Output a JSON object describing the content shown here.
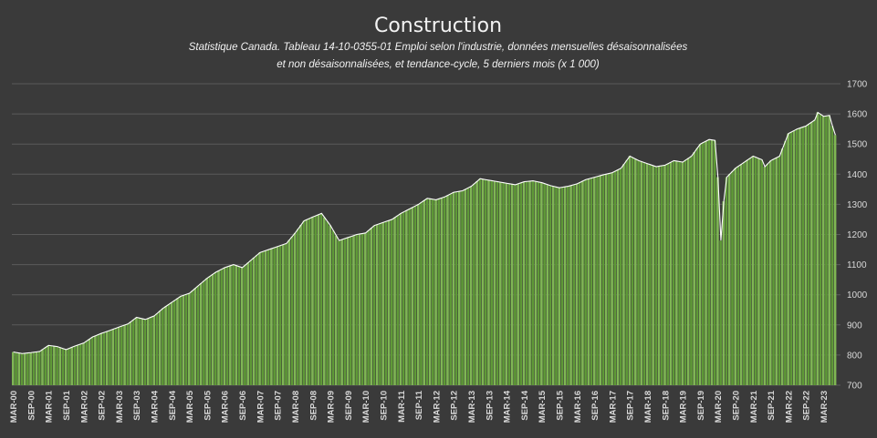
{
  "chart_data": {
    "type": "bar",
    "title": "Construction",
    "subtitle_lines": [
      "Statistique Canada. Tableau 14-10-0355-01  Emploi selon l'industrie, données mensuelles désaisonnalisées",
      "et non désaisonnalisées, et tendance-cycle, 5 derniers mois (x 1 000)"
    ],
    "xlabel": "",
    "ylabel": "",
    "ylim": [
      700,
      1700
    ],
    "yticks": [
      700,
      800,
      900,
      1000,
      1100,
      1200,
      1300,
      1400,
      1500,
      1600,
      1700
    ],
    "grid": true,
    "legend": "none",
    "bar_color": "#7fb654",
    "bar_color_dark": "#5f9a37",
    "outline_color": "#ffffff",
    "background": "#3a3a3a",
    "grid_color": "#5a5a5a",
    "text_color": "#f2f2f2",
    "x_tick_labels": [
      "MAR-00",
      "SEP-00",
      "MAR-01",
      "SEP-01",
      "MAR-02",
      "SEP-02",
      "MAR-03",
      "SEP-03",
      "MAR-04",
      "SEP-04",
      "MAR-05",
      "SEP-05",
      "MAR-06",
      "SEP-06",
      "MAR-07",
      "SEP-07",
      "MAR-08",
      "SEP-08",
      "MAR-09",
      "SEP-09",
      "MAR-10",
      "SEP-10",
      "MAR-11",
      "SEP-11",
      "MAR-12",
      "SEP-12",
      "MAR-13",
      "SEP-13",
      "MAR-14",
      "SEP-14",
      "MAR-15",
      "SEP-15",
      "MAR-16",
      "SEP-16",
      "MAR-17",
      "SEP-17",
      "MAR-18",
      "SEP-18",
      "MAR-19",
      "SEP-19",
      "MAR-20",
      "SEP-20",
      "MAR-21",
      "SEP-21",
      "MAR-22",
      "SEP-22",
      "MAR-23"
    ],
    "first_month": "2000-03",
    "anchors": [
      [
        "2000-03",
        810
      ],
      [
        "2000-06",
        805
      ],
      [
        "2000-09",
        808
      ],
      [
        "2000-12",
        812
      ],
      [
        "2001-03",
        832
      ],
      [
        "2001-06",
        828
      ],
      [
        "2001-09",
        818
      ],
      [
        "2001-12",
        830
      ],
      [
        "2002-03",
        840
      ],
      [
        "2002-06",
        860
      ],
      [
        "2002-09",
        872
      ],
      [
        "2002-12",
        882
      ],
      [
        "2003-03",
        893
      ],
      [
        "2003-06",
        903
      ],
      [
        "2003-09",
        925
      ],
      [
        "2003-12",
        918
      ],
      [
        "2004-03",
        930
      ],
      [
        "2004-06",
        955
      ],
      [
        "2004-09",
        975
      ],
      [
        "2004-12",
        995
      ],
      [
        "2005-03",
        1005
      ],
      [
        "2005-06",
        1030
      ],
      [
        "2005-09",
        1055
      ],
      [
        "2005-12",
        1075
      ],
      [
        "2006-03",
        1090
      ],
      [
        "2006-06",
        1100
      ],
      [
        "2006-09",
        1090
      ],
      [
        "2006-12",
        1115
      ],
      [
        "2007-03",
        1140
      ],
      [
        "2007-06",
        1150
      ],
      [
        "2007-09",
        1160
      ],
      [
        "2007-12",
        1170
      ],
      [
        "2008-03",
        1205
      ],
      [
        "2008-06",
        1245
      ],
      [
        "2008-09",
        1258
      ],
      [
        "2008-12",
        1270
      ],
      [
        "2009-03",
        1230
      ],
      [
        "2009-06",
        1180
      ],
      [
        "2009-09",
        1190
      ],
      [
        "2009-12",
        1200
      ],
      [
        "2010-03",
        1205
      ],
      [
        "2010-06",
        1230
      ],
      [
        "2010-09",
        1240
      ],
      [
        "2010-12",
        1250
      ],
      [
        "2011-03",
        1270
      ],
      [
        "2011-06",
        1285
      ],
      [
        "2011-09",
        1300
      ],
      [
        "2011-12",
        1320
      ],
      [
        "2012-03",
        1315
      ],
      [
        "2012-06",
        1325
      ],
      [
        "2012-09",
        1340
      ],
      [
        "2012-12",
        1345
      ],
      [
        "2013-03",
        1360
      ],
      [
        "2013-06",
        1385
      ],
      [
        "2013-09",
        1380
      ],
      [
        "2013-12",
        1375
      ],
      [
        "2014-03",
        1370
      ],
      [
        "2014-06",
        1365
      ],
      [
        "2014-09",
        1375
      ],
      [
        "2014-12",
        1378
      ],
      [
        "2015-03",
        1372
      ],
      [
        "2015-06",
        1362
      ],
      [
        "2015-09",
        1355
      ],
      [
        "2015-12",
        1360
      ],
      [
        "2016-03",
        1368
      ],
      [
        "2016-06",
        1382
      ],
      [
        "2016-09",
        1390
      ],
      [
        "2016-12",
        1398
      ],
      [
        "2017-03",
        1405
      ],
      [
        "2017-06",
        1420
      ],
      [
        "2017-09",
        1460
      ],
      [
        "2017-12",
        1445
      ],
      [
        "2018-03",
        1435
      ],
      [
        "2018-06",
        1425
      ],
      [
        "2018-09",
        1430
      ],
      [
        "2018-12",
        1445
      ],
      [
        "2019-03",
        1440
      ],
      [
        "2019-06",
        1460
      ],
      [
        "2019-09",
        1500
      ],
      [
        "2019-12",
        1515
      ],
      [
        "2020-02",
        1512
      ],
      [
        "2020-03",
        1390
      ],
      [
        "2020-04",
        1180
      ],
      [
        "2020-05",
        1310
      ],
      [
        "2020-06",
        1390
      ],
      [
        "2020-09",
        1420
      ],
      [
        "2020-12",
        1440
      ],
      [
        "2021-03",
        1460
      ],
      [
        "2021-06",
        1448
      ],
      [
        "2021-07",
        1425
      ],
      [
        "2021-09",
        1445
      ],
      [
        "2021-12",
        1460
      ],
      [
        "2022-03",
        1535
      ],
      [
        "2022-06",
        1550
      ],
      [
        "2022-09",
        1560
      ],
      [
        "2022-12",
        1580
      ],
      [
        "2023-01",
        1605
      ],
      [
        "2023-03",
        1592
      ],
      [
        "2023-05",
        1595
      ],
      [
        "2023-06",
        1560
      ],
      [
        "2023-07",
        1530
      ]
    ]
  }
}
